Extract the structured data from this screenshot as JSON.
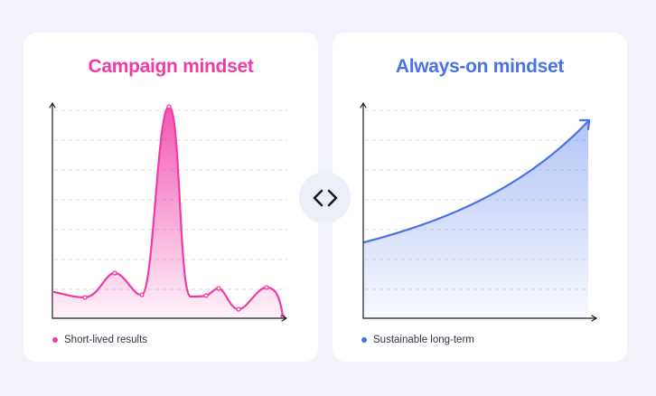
{
  "left_panel": {
    "title": "Campaign mindset",
    "legend_label": "Short-lived results",
    "accent_color": "#f03aa5"
  },
  "right_panel": {
    "title": "Always-on mindset",
    "legend_label": "Sustainable long-term",
    "accent_color": "#4a72e8"
  },
  "compare_icon": "code-brackets-icon"
}
